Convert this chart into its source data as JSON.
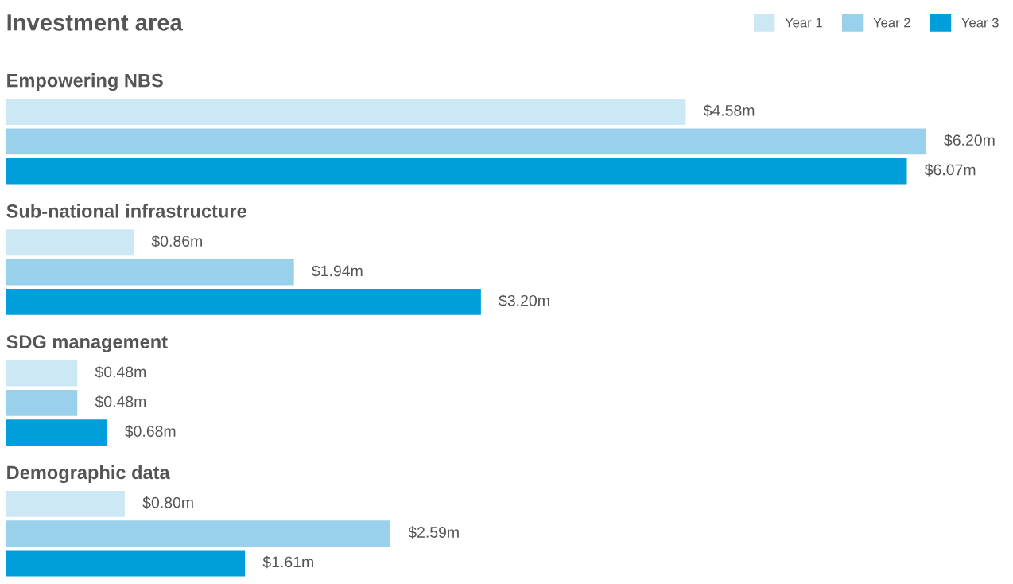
{
  "chart_data": {
    "type": "bar",
    "orientation": "horizontal",
    "title": "Investment area",
    "categories": [
      "Empowering NBS",
      "Sub-national infrastructure",
      "SDG management",
      "Demographic data"
    ],
    "series": [
      {
        "name": "Year 1",
        "color": "#cce8f5",
        "values": [
          4.58,
          0.86,
          0.48,
          0.8
        ],
        "value_labels": [
          "$4.58m",
          "$0.86m",
          "$0.48m",
          "$0.80m"
        ]
      },
      {
        "name": "Year 2",
        "color": "#99d1ed",
        "values": [
          6.2,
          1.94,
          0.48,
          2.59
        ],
        "value_labels": [
          "$6.20m",
          "$1.94m",
          "$0.48m",
          "$2.59m"
        ]
      },
      {
        "name": "Year 3",
        "color": "#009fdb",
        "values": [
          6.07,
          3.2,
          0.68,
          1.61
        ],
        "value_labels": [
          "$6.07m",
          "$3.20m",
          "$0.68m",
          "$1.61m"
        ]
      }
    ],
    "legend": "top right"
  }
}
